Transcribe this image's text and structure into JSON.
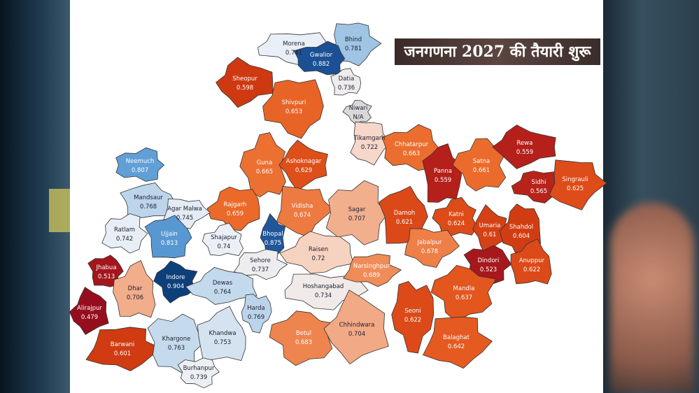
{
  "banner": {
    "headline": "जनगणना 2027 की तैयारी शुरू"
  },
  "map": {
    "scale_colors": {
      "high": "#0d3f7a",
      "mid": "#eef2f7",
      "low": "#9a0f1e",
      "na": "#d9d9d9"
    },
    "districts": [
      {
        "name": "Morena",
        "value": "0.741"
      },
      {
        "name": "Bhind",
        "value": "0.781"
      },
      {
        "name": "Gwalior",
        "value": "0.882"
      },
      {
        "name": "Datia",
        "value": "0.736"
      },
      {
        "name": "Niwari",
        "value": "N/A"
      },
      {
        "name": "Sheopur",
        "value": "0.598"
      },
      {
        "name": "Shivpuri",
        "value": "0.653"
      },
      {
        "name": "Tikamgarh",
        "value": "0.722"
      },
      {
        "name": "Chhatarpur",
        "value": "0.663"
      },
      {
        "name": "Panna",
        "value": "0.559"
      },
      {
        "name": "Satna",
        "value": "0.661"
      },
      {
        "name": "Rewa",
        "value": "0.559"
      },
      {
        "name": "Sidhi",
        "value": "0.565"
      },
      {
        "name": "Singrauli",
        "value": "0.625"
      },
      {
        "name": "Neemuch",
        "value": "0.807"
      },
      {
        "name": "Mandsaur",
        "value": "0.768"
      },
      {
        "name": "Guna",
        "value": "0.665"
      },
      {
        "name": "Ashoknagar",
        "value": "0.629"
      },
      {
        "name": "Rajgarh",
        "value": "0.659"
      },
      {
        "name": "Vidisha",
        "value": "0.674"
      },
      {
        "name": "Sagar",
        "value": "0.707"
      },
      {
        "name": "Damoh",
        "value": "0.621"
      },
      {
        "name": "Katni",
        "value": "0.624"
      },
      {
        "name": "Umaria",
        "value": "0.61"
      },
      {
        "name": "Shahdol",
        "value": "0.604"
      },
      {
        "name": "Agar Malwa",
        "value": "0.745"
      },
      {
        "name": "Ratlam",
        "value": "0.742"
      },
      {
        "name": "Ujjain",
        "value": "0.813"
      },
      {
        "name": "Shajapur",
        "value": "0.74"
      },
      {
        "name": "Bhopal",
        "value": "0.875"
      },
      {
        "name": "Raisen",
        "value": "0.72"
      },
      {
        "name": "Jabalpur",
        "value": "0.678"
      },
      {
        "name": "Sehore",
        "value": "0.737"
      },
      {
        "name": "Jhabua",
        "value": "0.513"
      },
      {
        "name": "Dhar",
        "value": "0.706"
      },
      {
        "name": "Indore",
        "value": "0.904"
      },
      {
        "name": "Dewas",
        "value": "0.764"
      },
      {
        "name": "Hoshangabad",
        "value": "0.734"
      },
      {
        "name": "Narsinghpur",
        "value": "0.689"
      },
      {
        "name": "Dindori",
        "value": "0.523"
      },
      {
        "name": "Anuppur",
        "value": "0.622"
      },
      {
        "name": "Mandla",
        "value": "0.637"
      },
      {
        "name": "Alirajpur",
        "value": "0.479"
      },
      {
        "name": "Harda",
        "value": "0.769"
      },
      {
        "name": "Barwani",
        "value": "0.601"
      },
      {
        "name": "Khargone",
        "value": "0.763"
      },
      {
        "name": "Khandwa",
        "value": "0.753"
      },
      {
        "name": "Betul",
        "value": "0.683"
      },
      {
        "name": "Chhindwara",
        "value": "0.704"
      },
      {
        "name": "Seoni",
        "value": "0.622"
      },
      {
        "name": "Balaghat",
        "value": "0.642"
      },
      {
        "name": "Burhanpur",
        "value": "0.739"
      }
    ]
  }
}
